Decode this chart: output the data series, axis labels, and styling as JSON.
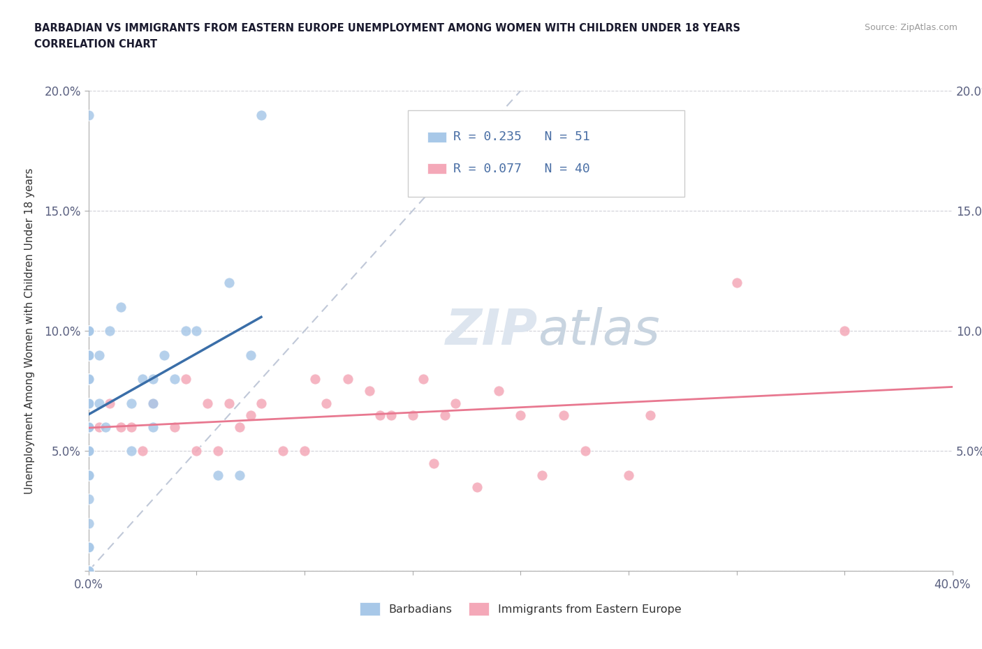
{
  "title_line1": "BARBADIAN VS IMMIGRANTS FROM EASTERN EUROPE UNEMPLOYMENT AMONG WOMEN WITH CHILDREN UNDER 18 YEARS",
  "title_line2": "CORRELATION CHART",
  "source_text": "Source: ZipAtlas.com",
  "ylabel": "Unemployment Among Women with Children Under 18 years",
  "xlim": [
    0.0,
    0.4
  ],
  "ylim": [
    0.0,
    0.2
  ],
  "xtick_positions": [
    0.0,
    0.05,
    0.1,
    0.15,
    0.2,
    0.25,
    0.3,
    0.35,
    0.4
  ],
  "xtick_labels": [
    "0.0%",
    "",
    "",
    "",
    "",
    "",
    "",
    "",
    "40.0%"
  ],
  "ytick_positions": [
    0.0,
    0.05,
    0.1,
    0.15,
    0.2
  ],
  "ytick_labels": [
    "",
    "5.0%",
    "10.0%",
    "15.0%",
    "20.0%"
  ],
  "color_blue": "#a8c8e8",
  "color_pink": "#f4a8b8",
  "color_blue_line": "#3a6ea8",
  "color_pink_line": "#e87890",
  "color_diag": "#c0c8d8",
  "watermark_zip": "ZIP",
  "watermark_atlas": "atlas",
  "barbadian_x": [
    0.0,
    0.0,
    0.0,
    0.0,
    0.0,
    0.0,
    0.0,
    0.0,
    0.0,
    0.0,
    0.0,
    0.0,
    0.0,
    0.0,
    0.0,
    0.0,
    0.0,
    0.0,
    0.0,
    0.0,
    0.0,
    0.0,
    0.0,
    0.0,
    0.0,
    0.0,
    0.0,
    0.0,
    0.0,
    0.0,
    0.0,
    0.005,
    0.005,
    0.008,
    0.01,
    0.015,
    0.02,
    0.02,
    0.025,
    0.03,
    0.03,
    0.03,
    0.035,
    0.04,
    0.045,
    0.05,
    0.06,
    0.065,
    0.07,
    0.075,
    0.08
  ],
  "barbadian_y": [
    0.0,
    0.0,
    0.01,
    0.02,
    0.03,
    0.04,
    0.04,
    0.05,
    0.05,
    0.05,
    0.06,
    0.06,
    0.06,
    0.07,
    0.07,
    0.07,
    0.07,
    0.07,
    0.08,
    0.08,
    0.08,
    0.08,
    0.09,
    0.09,
    0.09,
    0.09,
    0.1,
    0.1,
    0.1,
    0.01,
    0.19,
    0.07,
    0.09,
    0.06,
    0.1,
    0.11,
    0.05,
    0.07,
    0.08,
    0.06,
    0.07,
    0.08,
    0.09,
    0.08,
    0.1,
    0.1,
    0.04,
    0.12,
    0.04,
    0.09,
    0.19
  ],
  "eastern_x": [
    0.0,
    0.0,
    0.005,
    0.01,
    0.015,
    0.02,
    0.025,
    0.03,
    0.04,
    0.045,
    0.05,
    0.055,
    0.06,
    0.065,
    0.07,
    0.075,
    0.08,
    0.09,
    0.1,
    0.105,
    0.11,
    0.12,
    0.13,
    0.135,
    0.14,
    0.15,
    0.155,
    0.16,
    0.165,
    0.17,
    0.18,
    0.19,
    0.2,
    0.21,
    0.22,
    0.23,
    0.25,
    0.26,
    0.3,
    0.35
  ],
  "eastern_y": [
    0.06,
    0.07,
    0.06,
    0.07,
    0.06,
    0.06,
    0.05,
    0.07,
    0.06,
    0.08,
    0.05,
    0.07,
    0.05,
    0.07,
    0.06,
    0.065,
    0.07,
    0.05,
    0.05,
    0.08,
    0.07,
    0.08,
    0.075,
    0.065,
    0.065,
    0.065,
    0.08,
    0.045,
    0.065,
    0.07,
    0.035,
    0.075,
    0.065,
    0.04,
    0.065,
    0.05,
    0.04,
    0.065,
    0.12,
    0.1
  ]
}
